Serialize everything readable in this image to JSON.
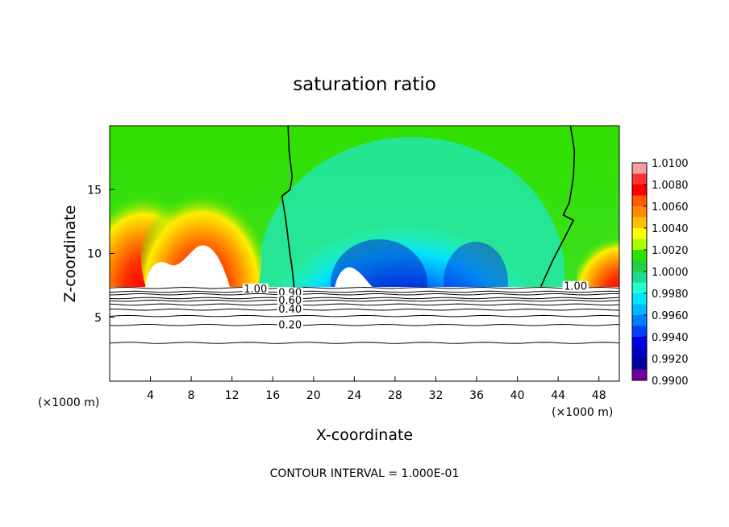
{
  "chart_data": {
    "type": "contour",
    "title": "saturation ratio",
    "xlabel": "X-coordinate",
    "ylabel": "Z-coordinate",
    "x_unit_left": "(×1000 m)",
    "x_unit_right": "(×1000 m)",
    "xlim": [
      0,
      50
    ],
    "ylim": [
      0,
      20
    ],
    "xticks": [
      4,
      8,
      12,
      16,
      20,
      24,
      28,
      32,
      36,
      40,
      44,
      48
    ],
    "yticks": [
      5,
      10,
      15
    ],
    "footer": "CONTOUR INTERVAL = 1.000E-01",
    "colorbar": {
      "labels": [
        "1.0100",
        "1.0080",
        "1.0060",
        "1.0040",
        "1.0020",
        "1.0000",
        "0.9980",
        "0.9960",
        "0.9940",
        "0.9920",
        "0.9900"
      ],
      "colors": [
        "#f4a0a0",
        "#ff3030",
        "#ff0000",
        "#ff5a00",
        "#ff8c00",
        "#ffc000",
        "#ffff00",
        "#a8ff00",
        "#30e000",
        "#20d040",
        "#20d890",
        "#20ffd0",
        "#00e8ff",
        "#00b8ff",
        "#0080ff",
        "#0040ff",
        "#0000e0",
        "#0000c0",
        "#00009a",
        "#7000a0"
      ]
    },
    "contour_labels": [
      {
        "text": "1.00",
        "x": 14.3,
        "z": 7.2
      },
      {
        "text": "0.90",
        "x": 17.7,
        "z": 6.9
      },
      {
        "text": "0.60",
        "x": 17.7,
        "z": 6.3
      },
      {
        "text": "0.40",
        "x": 17.7,
        "z": 5.6
      },
      {
        "text": "0.20",
        "x": 17.7,
        "z": 4.4
      },
      {
        "text": "1.00",
        "x": 45.7,
        "z": 7.4
      }
    ],
    "contour_lines_z": [
      7.3,
      7.0,
      6.8,
      6.5,
      6.3,
      6.0,
      5.6,
      5.1,
      4.4,
      3.0
    ],
    "saturation_boundary": [
      {
        "name": "left",
        "points": [
          [
            17.5,
            20.0
          ],
          [
            17.6,
            18.0
          ],
          [
            17.9,
            16.0
          ],
          [
            17.7,
            15.0
          ],
          [
            16.9,
            14.5
          ],
          [
            17.3,
            12.5
          ],
          [
            17.6,
            10.5
          ],
          [
            17.9,
            8.8
          ],
          [
            18.1,
            7.3
          ]
        ]
      },
      {
        "name": "right",
        "points": [
          [
            45.2,
            20.0
          ],
          [
            45.6,
            18.0
          ],
          [
            45.5,
            16.0
          ],
          [
            45.1,
            14.0
          ],
          [
            44.5,
            13.0
          ],
          [
            45.5,
            12.6
          ],
          [
            44.8,
            11.5
          ],
          [
            43.5,
            9.5
          ],
          [
            42.3,
            7.4
          ]
        ]
      }
    ]
  }
}
